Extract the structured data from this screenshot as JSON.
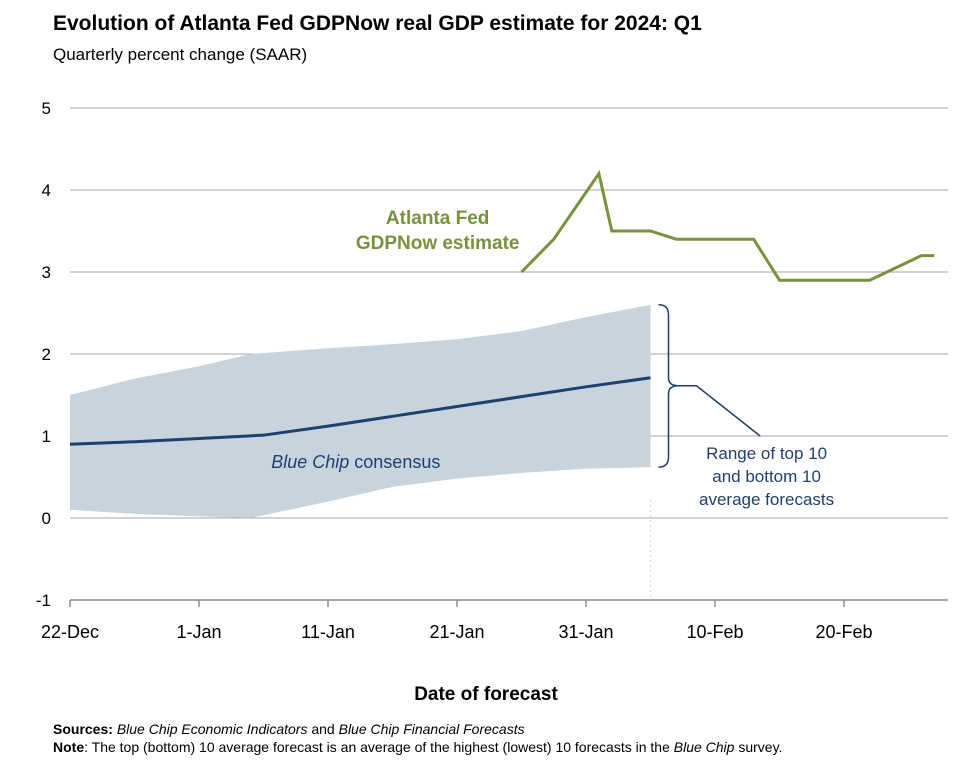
{
  "title": "Evolution of Atlanta Fed GDPNow real GDP estimate for 2024: Q1",
  "subtitle": "Quarterly percent change (SAAR)",
  "colors": {
    "gdpnow": "#76933c",
    "consensus": "#1f3f6e",
    "range_fill": "#c7d3dd",
    "grid": "#a6a6a6",
    "annotation": "#1f3f6e"
  },
  "chart_data": {
    "type": "line",
    "title": "Evolution of Atlanta Fed GDPNow real GDP estimate for 2024: Q1",
    "xlabel": "Date of forecast",
    "ylabel": "Quarterly percent change (SAAR)",
    "ylim": [
      -1,
      5
    ],
    "yticks": [
      -1,
      0,
      1,
      2,
      3,
      4,
      5
    ],
    "x_unit": "days since 22-Dec-2023",
    "xlim": [
      0,
      68
    ],
    "xticks": [
      {
        "x": 0,
        "label": "22-Dec"
      },
      {
        "x": 10,
        "label": "1-Jan"
      },
      {
        "x": 20,
        "label": "11-Jan"
      },
      {
        "x": 30,
        "label": "21-Jan"
      },
      {
        "x": 40,
        "label": "31-Jan"
      },
      {
        "x": 50,
        "label": "10-Feb"
      },
      {
        "x": 60,
        "label": "20-Feb"
      }
    ],
    "grid": true,
    "series": [
      {
        "name": "Atlanta Fed GDPNow estimate",
        "kind": "line",
        "x": [
          35,
          37.5,
          41,
          42,
          45,
          47,
          53,
          55,
          62,
          66,
          67
        ],
        "y": [
          3.0,
          3.4,
          4.2,
          3.5,
          3.5,
          3.4,
          3.4,
          2.9,
          2.9,
          3.2,
          3.2
        ]
      },
      {
        "name": "Blue Chip consensus",
        "kind": "line",
        "x": [
          0,
          5,
          10,
          15,
          20,
          25,
          30,
          35,
          40,
          45
        ],
        "y": [
          0.9,
          0.93,
          0.97,
          1.01,
          1.12,
          1.24,
          1.36,
          1.48,
          1.6,
          1.71
        ]
      },
      {
        "name": "Range of top 10 and bottom 10 average forecasts",
        "kind": "band",
        "x": [
          0,
          5,
          10,
          14,
          20,
          25,
          30,
          35,
          40,
          45
        ],
        "upper": [
          1.5,
          1.7,
          1.85,
          2.0,
          2.07,
          2.12,
          2.18,
          2.28,
          2.45,
          2.6
        ],
        "lower": [
          0.1,
          0.05,
          0.02,
          0.0,
          0.2,
          0.38,
          0.48,
          0.55,
          0.6,
          0.62
        ]
      }
    ],
    "annotations": {
      "gdpnow_label": [
        "Atlanta Fed",
        "GDPNow estimate"
      ],
      "consensus_label": {
        "italic": "Blue Chip",
        "rest": " consensus"
      },
      "range_label": [
        "Range of top 10",
        "and bottom 10",
        "average forecasts"
      ]
    }
  },
  "footer": {
    "sources_label": "Sources:",
    "sources_italic1": "Blue Chip Economic Indicators",
    "sources_and": " and ",
    "sources_italic2": "Blue Chip Financial Forecasts",
    "note_label": "Note",
    "note_text1": ": The top (bottom) 10 average forecast is an average of the highest (lowest) 10 forecasts in the ",
    "note_italic": "Blue Chip",
    "note_text2": " survey."
  }
}
